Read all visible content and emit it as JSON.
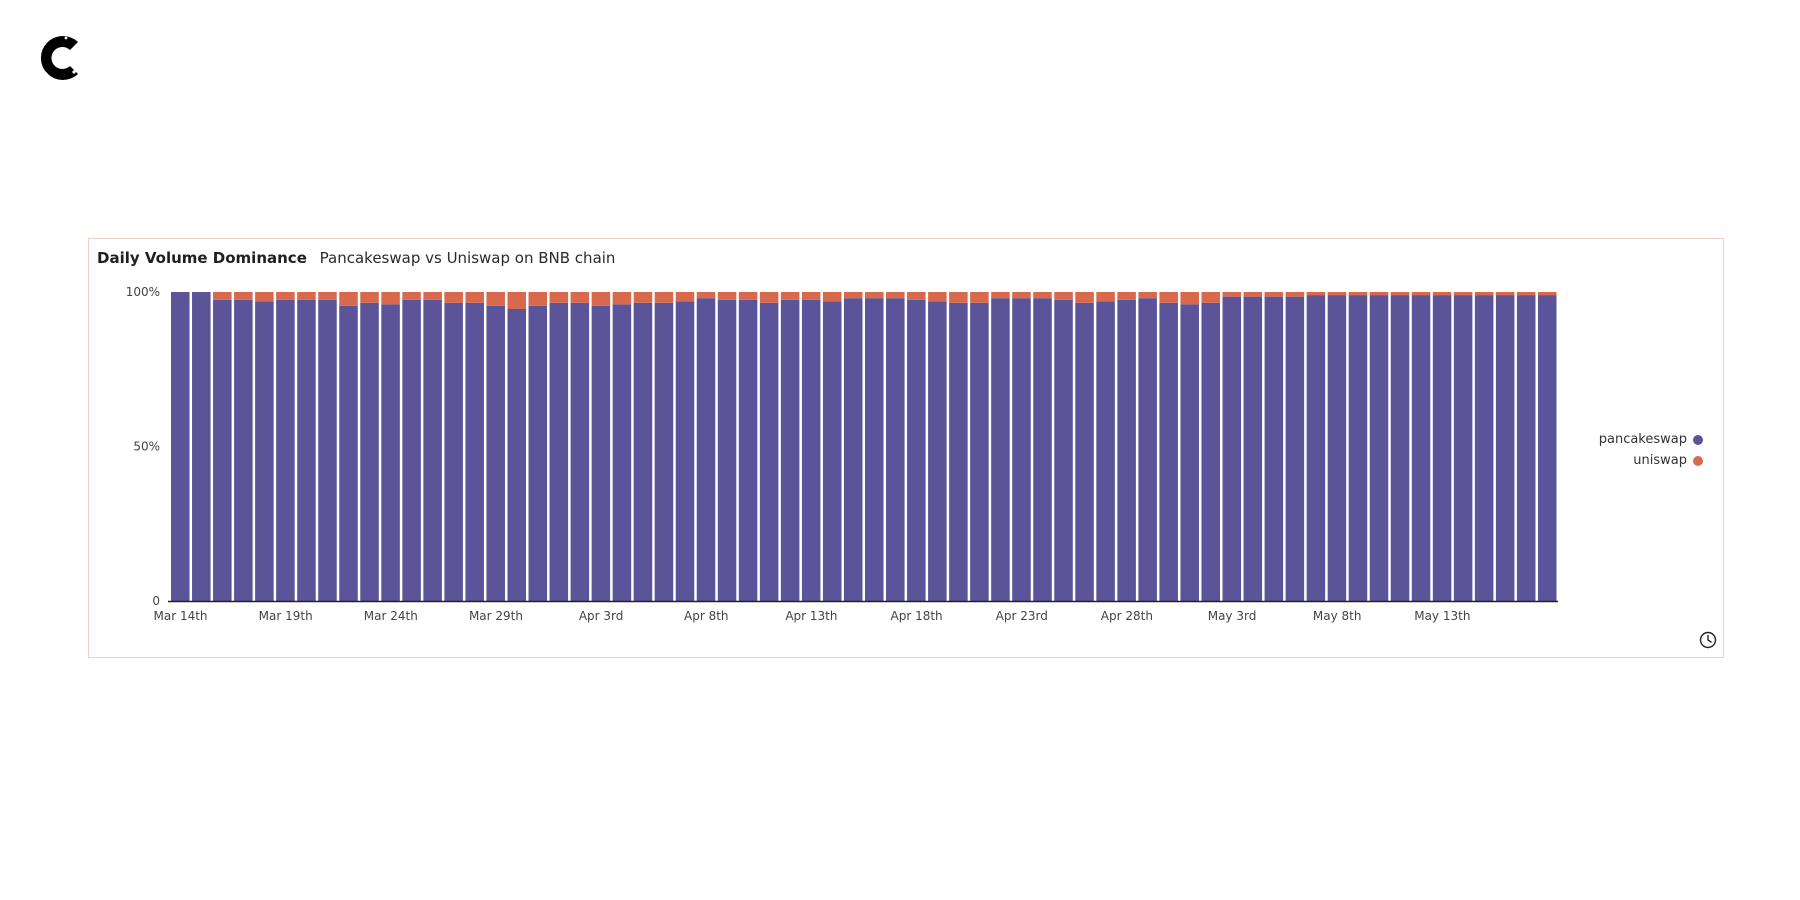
{
  "brand": {
    "logo_name": "C"
  },
  "chart_data": {
    "type": "bar",
    "stacked": "percent",
    "title": "Daily Volume Dominance",
    "subtitle": "Pancakeswap vs Uniswap on BNB chain",
    "xlabel": "",
    "ylabel": "",
    "ylim": [
      0,
      100
    ],
    "y_ticks": [
      "100%",
      "50%",
      "0"
    ],
    "y_tick_values": [
      100,
      50,
      0
    ],
    "x_tick_labels": [
      "Mar 14th",
      "Mar 19th",
      "Mar 24th",
      "Mar 29th",
      "Apr 3rd",
      "Apr 8th",
      "Apr 13th",
      "Apr 18th",
      "Apr 23rd",
      "Apr 28th",
      "May 3rd",
      "May 8th",
      "May 13th"
    ],
    "x_tick_every": 5,
    "series": [
      {
        "name": "pancakeswap",
        "color": "#5b5498",
        "values": [
          100,
          100,
          97.5,
          97.5,
          97,
          97.5,
          97.5,
          97.5,
          95.5,
          96.5,
          96,
          97.5,
          97.5,
          96.5,
          96.5,
          95.5,
          94.5,
          95.5,
          96.5,
          96.5,
          95.5,
          96,
          96.5,
          96.5,
          97,
          98,
          97.5,
          97.5,
          96.5,
          97.5,
          97.5,
          97,
          98,
          98,
          98,
          97.5,
          97,
          96.5,
          96.5,
          98,
          98,
          98,
          97.5,
          96.5,
          97,
          97.5,
          98,
          96.5,
          96,
          96.5,
          98.5,
          98.5,
          98.5,
          98.5,
          99,
          99,
          99,
          99,
          99,
          99,
          99,
          99,
          99,
          99,
          99,
          99
        ]
      },
      {
        "name": "uniswap",
        "color": "#d9694c",
        "values": [
          0,
          0,
          2.5,
          2.5,
          3,
          2.5,
          2.5,
          2.5,
          4.5,
          3.5,
          4,
          2.5,
          2.5,
          3.5,
          3.5,
          4.5,
          5.5,
          4.5,
          3.5,
          3.5,
          4.5,
          4,
          3.5,
          3.5,
          3,
          2,
          2.5,
          2.5,
          3.5,
          2.5,
          2.5,
          3,
          2,
          2,
          2,
          2.5,
          3,
          3.5,
          3.5,
          2,
          2,
          2,
          2.5,
          3.5,
          3,
          2.5,
          2,
          3.5,
          4,
          3.5,
          1.5,
          1.5,
          1.5,
          1.5,
          1,
          1,
          1,
          1,
          1,
          1,
          1,
          1,
          1,
          1,
          1,
          1
        ]
      }
    ],
    "legend_position": "right"
  },
  "icons": {
    "clock": "clock-icon"
  }
}
